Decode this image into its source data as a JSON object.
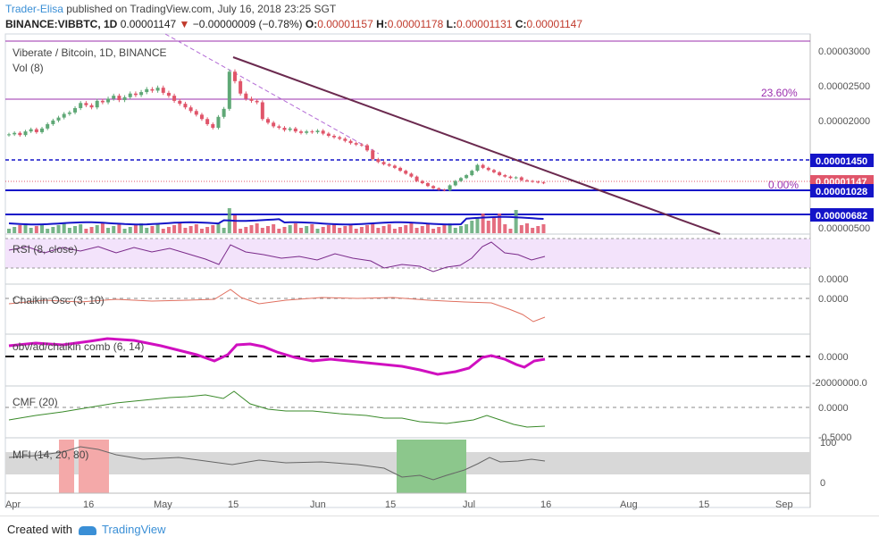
{
  "header": {
    "author": "Trader-Elisa",
    "published_text": "published on TradingView.com, July 16, 2018 23:25 SGT",
    "symbol": "BINANCE:VIBBTC, 1D",
    "last": "0.00001147",
    "change": "−0.00000009 (−0.78%)",
    "o_label": "O:",
    "o_value": "0.00001157",
    "h_label": "H:",
    "h_value": "0.00001178",
    "l_label": "L:",
    "l_value": "0.00001131",
    "c_label": "C:",
    "c_value": "0.00001147"
  },
  "main_pane": {
    "title": "Viberate / Bitcoin, 1D, BINANCE",
    "vol_label": "Vol (8)",
    "fib_236": "23.60%",
    "fib_0": "0.00%",
    "price_ticks": [
      "0.00003000",
      "0.00002500",
      "0.00002000",
      "0.00000500"
    ],
    "badges": {
      "line_1450": "0.00001450",
      "last": "0.00001147",
      "line_1028": "0.00001028",
      "line_682": "0.00000682"
    }
  },
  "indicators": {
    "rsi": {
      "label": "RSI (8, close)",
      "tick": "0.0000"
    },
    "chaikin": {
      "label": "Chaikin Osc (3, 10)",
      "tick": "0.0000"
    },
    "obv": {
      "label": "obv/ad/chaikin comb (6, 14)",
      "tick1": "0.0000",
      "tick2": "-20000000.0"
    },
    "cmf": {
      "label": "CMF (20)",
      "tick1": "0.0000",
      "tick2": "-0.5000"
    },
    "mfi": {
      "label": "MFI (14, 20, 80)",
      "tick1": "100",
      "tick2": "0"
    }
  },
  "time_axis": [
    "Apr",
    "16",
    "May",
    "15",
    "Jun",
    "15",
    "Jul",
    "16",
    "Aug",
    "15",
    "Sep"
  ],
  "footer": {
    "created": "Created with",
    "brand": "TradingView"
  },
  "colors": {
    "up": "#5fa876",
    "down": "#e0556a",
    "blue_line": "#1414c8",
    "trend": "#6b2a4f",
    "fib": "#9b2fae",
    "rsi_bg": "#f3e3fb",
    "mfi_band": "#d8d8d8",
    "author": "#3a8fd6"
  },
  "chart_data": {
    "type": "candlestick",
    "symbol": "VIBBTC",
    "x_labels": [
      "Apr",
      "16",
      "May",
      "15",
      "Jun",
      "15",
      "Jul",
      "16",
      "Aug",
      "15",
      "Sep"
    ],
    "ylim": [
      5e-06,
      3.1e-05
    ],
    "horizontal_levels": [
      1.45e-05,
      1.028e-05,
      6.82e-06
    ],
    "last_price": 1.147e-05,
    "series": [
      {
        "name": "VIBBTC",
        "close": [
          1.82e-05,
          1.84e-05,
          1.81e-05,
          1.86e-05,
          1.89e-05,
          1.85e-05,
          1.9e-05,
          1.96e-05,
          2.01e-05,
          2.05e-05,
          2.1e-05,
          2.12e-05,
          2.18e-05,
          2.25e-05,
          2.22e-05,
          2.19e-05,
          2.28e-05,
          2.26e-05,
          2.31e-05,
          2.35e-05,
          2.29e-05,
          2.33e-05,
          2.38e-05,
          2.36e-05,
          2.4e-05,
          2.44e-05,
          2.42e-05,
          2.46e-05,
          2.39e-05,
          2.35e-05,
          2.28e-05,
          2.24e-05,
          2.19e-05,
          2.14e-05,
          2.09e-05,
          2.03e-05,
          1.96e-05,
          1.91e-05,
          2.06e-05,
          2.17e-05,
          2.68e-05,
          2.55e-05,
          2.38e-05,
          2.31e-05,
          2.28e-05,
          2.26e-05,
          2.03e-05,
          1.98e-05,
          1.93e-05,
          1.91e-05,
          1.88e-05,
          1.9e-05,
          1.86e-05,
          1.84e-05,
          1.86e-05,
          1.85e-05,
          1.87e-05,
          1.83e-05,
          1.8e-05,
          1.78e-05,
          1.76e-05,
          1.73e-05,
          1.7e-05,
          1.68e-05,
          1.67e-05,
          1.6e-05,
          1.48e-05,
          1.44e-05,
          1.41e-05,
          1.39e-05,
          1.36e-05,
          1.32e-05,
          1.28e-05,
          1.24e-05,
          1.18e-05,
          1.15e-05,
          1.11e-05,
          1.08e-05,
          1.06e-05,
          1.05e-05,
          1.12e-05,
          1.18e-05,
          1.22e-05,
          1.26e-05,
          1.32e-05,
          1.4e-05,
          1.36e-05,
          1.33e-05,
          1.3e-05,
          1.26e-05,
          1.24e-05,
          1.22e-05,
          1.23e-05,
          1.19e-05,
          1.18e-05,
          1.17e-05,
          1.16e-05,
          1.15e-05
        ]
      }
    ]
  }
}
